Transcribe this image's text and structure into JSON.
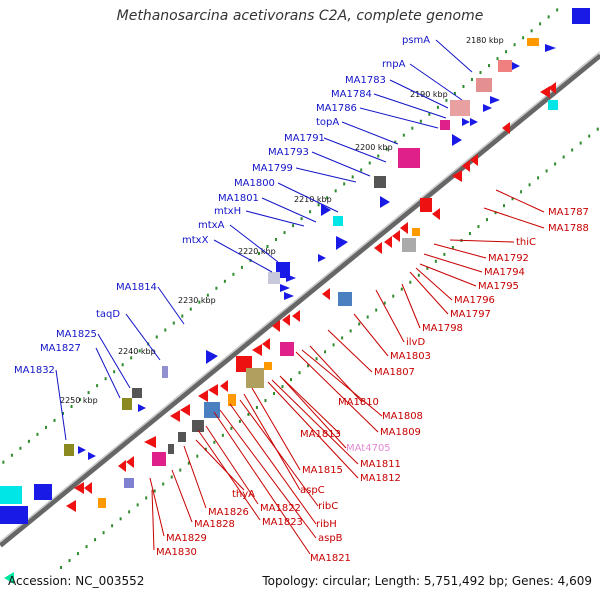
{
  "title": "Methanosarcina acetivorans C2A, complete genome",
  "footer": {
    "accession": "Accession: NC_003552",
    "summary": "Topology: circular; Length: 5,751,492 bp; Genes: 4,609"
  },
  "colors": {
    "forward_label": "#1414c8",
    "reverse_label": "#c80000",
    "rna_label": "#e58ad5",
    "forward_gene": "#1a1ae6",
    "reverse_gene": "#ee1111",
    "backbone": "#7a7a7a",
    "tick_dots": "#2e8b2e"
  },
  "kbp_ticks": [
    "2180 kbp",
    "2190 kbp",
    "2200 kbp",
    "2210 kbp",
    "2220 kbp",
    "2230 kbp",
    "2240 kbp",
    "2250 kbp"
  ],
  "forward_labels": [
    "psmA",
    "rnpA",
    "MA1783",
    "MA1784",
    "MA1786",
    "topA",
    "MA1791",
    "MA1793",
    "MA1799",
    "MA1800",
    "MA1801",
    "mtxH",
    "mtxA",
    "mtxX",
    "MA1814",
    "taqD",
    "MA1825",
    "MA1827",
    "MA1832"
  ],
  "reverse_labels": [
    "MA1787",
    "MA1788",
    "thiC",
    "MA1792",
    "MA1794",
    "MA1795",
    "MA1796",
    "MA1797",
    "MA1798",
    "ilvD",
    "MA1803",
    "MA1807",
    "MA1810",
    "MA1808",
    "MA1809",
    "MA1813",
    "MAt4705",
    "MA1811",
    "MA1812",
    "MA1815",
    "aspC",
    "ribC",
    "ribH",
    "aspB",
    "MA1821",
    "MA1822",
    "MA1823",
    "thyA",
    "MA1826",
    "MA1828",
    "MA1829",
    "MA1830"
  ]
}
